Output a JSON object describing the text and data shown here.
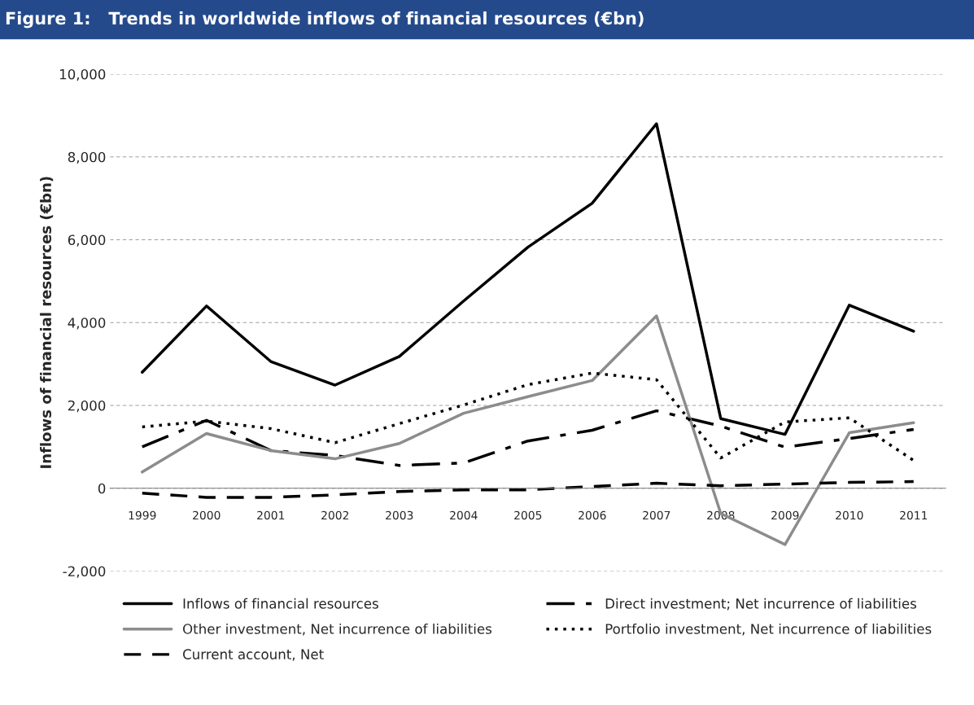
{
  "chart_data": {
    "type": "line",
    "title": "Figure 1:   Trends in worldwide inflows of financial resources (€bn)",
    "ylabel": "Inflows of financial resources (€bn)",
    "categories": [
      "1999",
      "2000",
      "2001",
      "2002",
      "2003",
      "2004",
      "2005",
      "2006",
      "2007",
      "2008",
      "2009",
      "2010",
      "2011"
    ],
    "series": [
      {
        "name": "Inflows of financial resources",
        "color": "#000000",
        "line_style": "solid",
        "values": [
          2800,
          4400,
          3060,
          2490,
          3180,
          4520,
          5820,
          6880,
          8800,
          1680,
          1300,
          4420,
          3790
        ]
      },
      {
        "name": "Direct investment; Net incurrence of liabilities",
        "color": "#000000",
        "line_style": "dashdot",
        "values": [
          1000,
          1640,
          910,
          790,
          550,
          610,
          1140,
          1400,
          1870,
          1500,
          990,
          1200,
          1420
        ]
      },
      {
        "name": "Other investment, Net incurrence of liabilities",
        "color": "#8c8c8c",
        "line_style": "solid",
        "values": [
          390,
          1320,
          910,
          710,
          1080,
          1810,
          2210,
          2600,
          4160,
          -610,
          -1360,
          1340,
          1580
        ]
      },
      {
        "name": "Portfolio investment, Net incurrence of liabilities",
        "color": "#000000",
        "line_style": "dotted",
        "values": [
          1480,
          1620,
          1440,
          1100,
          1560,
          2010,
          2500,
          2780,
          2620,
          730,
          1600,
          1700,
          670
        ]
      },
      {
        "name": "Current account, Net",
        "color": "#000000",
        "line_style": "dashed",
        "values": [
          -120,
          -220,
          -220,
          -160,
          -80,
          -40,
          -40,
          40,
          120,
          60,
          100,
          140,
          160
        ]
      }
    ],
    "ylim": [
      -2000,
      10000
    ],
    "yticks": [
      {
        "value": -2000,
        "label": "-2,000"
      },
      0,
      {
        "value": 2000,
        "label": "2,000"
      },
      {
        "value": 4000,
        "label": "4,000"
      },
      {
        "value": 6000,
        "label": "6,000"
      },
      {
        "value": 8000,
        "label": "8,000"
      },
      {
        "value": 10000,
        "label": "10,000"
      }
    ],
    "grid": "y",
    "legend": "bottom",
    "marker": "none"
  }
}
